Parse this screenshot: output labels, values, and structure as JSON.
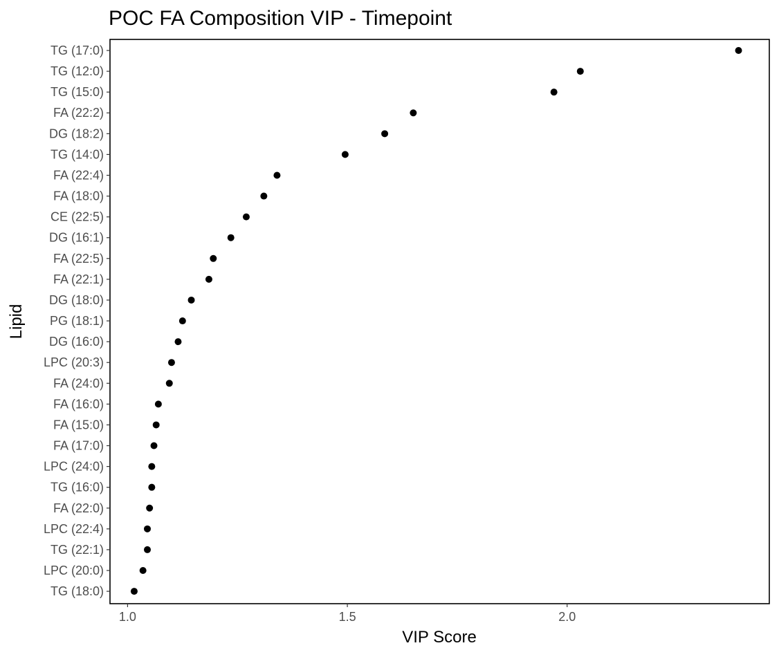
{
  "chart_data": {
    "type": "scatter",
    "title": "POC FA Composition VIP - Timepoint",
    "xlabel": "VIP Score",
    "ylabel": "Lipid",
    "xlim": [
      0.96,
      2.46
    ],
    "xticks": [
      1.0,
      1.5,
      2.0
    ],
    "xtick_labels": [
      "1.0",
      "1.5",
      "2.0"
    ],
    "grid": false,
    "legend": "none",
    "point_color": "#000000",
    "categories": [
      "TG (17:0)",
      "TG (12:0)",
      "TG (15:0)",
      "FA (22:2)",
      "DG (18:2)",
      "TG (14:0)",
      "FA (22:4)",
      "FA (18:0)",
      "CE (22:5)",
      "DG (16:1)",
      "FA (22:5)",
      "FA (22:1)",
      "DG (18:0)",
      "PG (18:1)",
      "DG (16:0)",
      "LPC (20:3)",
      "FA (24:0)",
      "FA (16:0)",
      "FA (15:0)",
      "FA (17:0)",
      "LPC (24:0)",
      "TG (16:0)",
      "FA (22:0)",
      "LPC (22:4)",
      "TG (22:1)",
      "LPC (20:0)",
      "TG (18:0)"
    ],
    "values": [
      2.39,
      2.03,
      1.97,
      1.65,
      1.585,
      1.495,
      1.34,
      1.31,
      1.27,
      1.235,
      1.195,
      1.185,
      1.145,
      1.125,
      1.115,
      1.1,
      1.095,
      1.07,
      1.065,
      1.06,
      1.055,
      1.055,
      1.05,
      1.045,
      1.045,
      1.035,
      1.015
    ]
  }
}
